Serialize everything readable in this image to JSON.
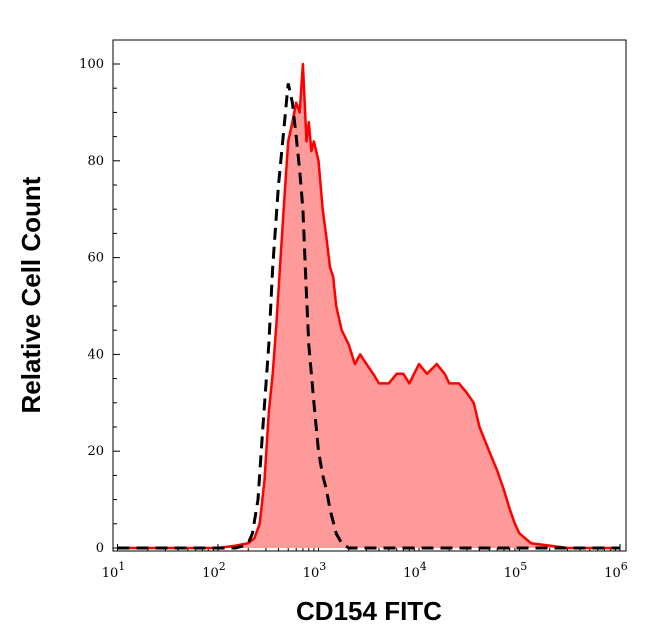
{
  "chart_data": {
    "type": "area",
    "title": "",
    "xlabel": "CD154 FITC",
    "ylabel": "Relative Cell Count",
    "x_scale": "log",
    "xlim": [
      10,
      1000000
    ],
    "ylim": [
      0,
      100
    ],
    "x_ticks": [
      {
        "base": "10",
        "exp": "1",
        "value": 10
      },
      {
        "base": "10",
        "exp": "2",
        "value": 100
      },
      {
        "base": "10",
        "exp": "3",
        "value": 1000
      },
      {
        "base": "10",
        "exp": "4",
        "value": 10000
      },
      {
        "base": "10",
        "exp": "5",
        "value": 100000
      },
      {
        "base": "10",
        "exp": "6",
        "value": 1000000
      }
    ],
    "y_ticks": [
      "0",
      "20",
      "40",
      "60",
      "80",
      "100"
    ],
    "grid": false,
    "legend": "none",
    "series": [
      {
        "style": "filled",
        "color": "#ff0000",
        "fill": "#ff9a9a",
        "x": [
          10,
          40,
          100,
          150,
          200,
          230,
          260,
          290,
          320,
          350,
          380,
          420,
          460,
          500,
          550,
          600,
          650,
          700,
          760,
          800,
          850,
          900,
          1000,
          1100,
          1200,
          1300,
          1400,
          1500,
          1700,
          2000,
          2300,
          2600,
          3000,
          3500,
          4000,
          5000,
          6000,
          7000,
          8000,
          10000,
          12000,
          15000,
          18000,
          20000,
          25000,
          30000,
          35000,
          40000,
          50000,
          60000,
          70000,
          80000,
          90000,
          100000,
          130000,
          200000,
          300000,
          500000,
          1000000
        ],
        "y": [
          0,
          0,
          0,
          0.5,
          1,
          2,
          5,
          14,
          28,
          36,
          46,
          60,
          73,
          84,
          88,
          92,
          90,
          100,
          84,
          88,
          82,
          84,
          80,
          70,
          64,
          58,
          56,
          50,
          45,
          42,
          38,
          40,
          38,
          36,
          34,
          34,
          36,
          36,
          34,
          38,
          36,
          38,
          36,
          34,
          34,
          32,
          30,
          25,
          20,
          16,
          12,
          8,
          5,
          3,
          1,
          0.5,
          0,
          0,
          0
        ]
      },
      {
        "style": "dashed",
        "color": "#000000",
        "x": [
          10,
          100,
          150,
          180,
          200,
          220,
          250,
          280,
          320,
          350,
          400,
          450,
          500,
          550,
          600,
          650,
          700,
          750,
          800,
          900,
          1000,
          1100,
          1200,
          1300,
          1500,
          1700,
          2000,
          3000,
          10000,
          100000,
          1000000
        ],
        "y": [
          0,
          0,
          0,
          0.5,
          1,
          3,
          10,
          25,
          42,
          58,
          75,
          86,
          96,
          92,
          85,
          78,
          70,
          55,
          42,
          30,
          20,
          15,
          12,
          8,
          3,
          1,
          0,
          0,
          0,
          0,
          0
        ]
      }
    ]
  }
}
